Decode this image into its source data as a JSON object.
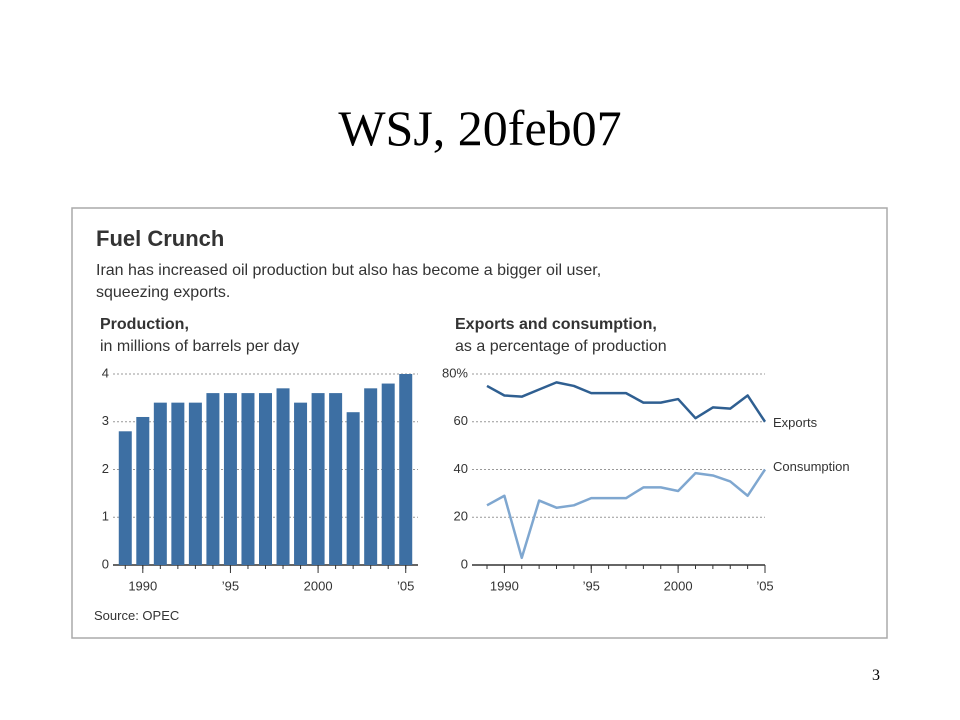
{
  "title": "WSJ, 20feb07",
  "page_number": "3",
  "figure": {
    "title": "Fuel Crunch",
    "subtitle_lines": [
      "Iran has increased oil production but also has become a bigger oil user,",
      "squeezing exports."
    ],
    "source": "Source: OPEC"
  },
  "chart_data": [
    {
      "type": "bar",
      "title": "Production,",
      "subtitle": "in millions of barrels per day",
      "x": [
        1989,
        1990,
        1991,
        1992,
        1993,
        1994,
        1995,
        1996,
        1997,
        1998,
        1999,
        2000,
        2001,
        2002,
        2003,
        2004,
        2005
      ],
      "values": [
        2.8,
        3.1,
        3.4,
        3.4,
        3.4,
        3.6,
        3.6,
        3.6,
        3.6,
        3.7,
        3.4,
        3.6,
        3.6,
        3.2,
        3.7,
        3.8,
        4.0
      ],
      "color": "#3d6fa3",
      "xlim": [
        1988.3,
        2005.7
      ],
      "xticks": [
        1990,
        {
          "value": 1995,
          "label": "’95"
        },
        2000,
        {
          "value": 2005,
          "label": "’05"
        }
      ],
      "ylim": [
        0,
        4
      ],
      "yticks": [
        0,
        1,
        2,
        3,
        4
      ],
      "grid": true
    },
    {
      "type": "line",
      "title": "Exports and consumption,",
      "subtitle": "as a percentage of production",
      "x": [
        1989,
        1990,
        1991,
        1992,
        1993,
        1994,
        1995,
        1996,
        1997,
        1998,
        1999,
        2000,
        2001,
        2002,
        2003,
        2004,
        2005
      ],
      "series": [
        {
          "name": "Exports",
          "color": "#2f5f91",
          "values": [
            75,
            71,
            70.5,
            73.5,
            76.5,
            75,
            72,
            72,
            72,
            68,
            68,
            69.5,
            61.5,
            66,
            65.5,
            71,
            60
          ]
        },
        {
          "name": "Consumption",
          "color": "#7fa7d0",
          "values": [
            25,
            29,
            3,
            27,
            24,
            25,
            28,
            28,
            28,
            32.5,
            32.5,
            31,
            38.5,
            37.5,
            35,
            29,
            40
          ]
        }
      ],
      "xlim": [
        1989,
        2005
      ],
      "xticks": [
        1990,
        {
          "value": 1995,
          "label": "’95"
        },
        2000,
        {
          "value": 2005,
          "label": "’05"
        }
      ],
      "ylim": [
        0,
        80
      ],
      "yticks": [
        0,
        20,
        40,
        60,
        {
          "value": 80,
          "label": "80%"
        }
      ],
      "grid": true
    }
  ]
}
